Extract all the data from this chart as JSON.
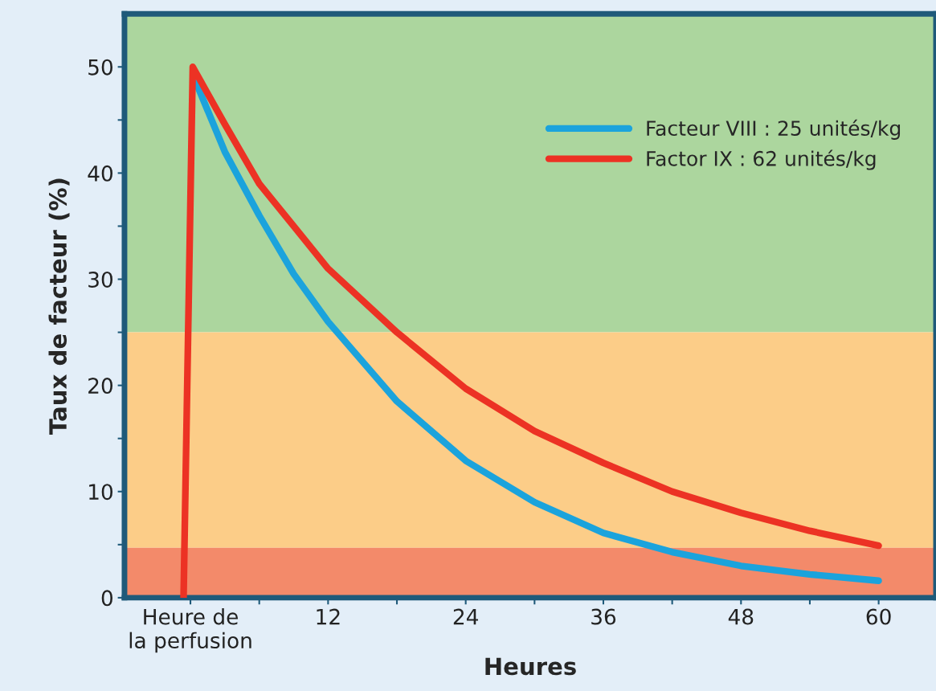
{
  "chart_data": {
    "type": "line",
    "xlabel": "Heures",
    "ylabel": "Taux de facteur (%)",
    "xlim": [
      -5.75,
      65
    ],
    "ylim": [
      0,
      55
    ],
    "xticks": [
      {
        "value": 0,
        "label": "Heure de\nla perfusion"
      },
      {
        "value": 6,
        "label": null
      },
      12,
      {
        "value": 18,
        "label": null
      },
      24,
      {
        "value": 30,
        "label": null
      },
      36,
      {
        "value": 42,
        "label": null
      },
      48,
      {
        "value": 54,
        "label": null
      },
      60
    ],
    "yticks": [
      0,
      {
        "value": 5,
        "label": null
      },
      10,
      {
        "value": 15,
        "label": null
      },
      20,
      {
        "value": 25,
        "label": null
      },
      30,
      {
        "value": 35,
        "label": null
      },
      40,
      {
        "value": 45,
        "label": null
      },
      50
    ],
    "series": [
      {
        "name": "Facteur VIII : 25 unités/kg",
        "color": "#1ba3dc",
        "x": [
          0.5,
          3,
          6,
          9,
          12,
          18,
          24,
          30,
          36,
          42,
          48,
          54,
          60
        ],
        "values": [
          48.5,
          42,
          36,
          30.5,
          26,
          18.5,
          12.9,
          9,
          6.1,
          4.3,
          3.0,
          2.2,
          1.6
        ]
      },
      {
        "name": "Factor IX : 62 unités/kg",
        "color": "#ec3224",
        "x": [
          -0.6,
          0.2,
          3,
          6,
          9,
          12,
          18,
          24,
          30,
          36,
          42,
          48,
          54,
          60
        ],
        "values": [
          0,
          50,
          44.6,
          39,
          35,
          31,
          25,
          19.7,
          15.7,
          12.7,
          10,
          8.0,
          6.3,
          4.9
        ]
      }
    ],
    "bands": [
      {
        "axis": "y",
        "from": 25,
        "to": 55,
        "color": "#acd69e"
      },
      {
        "axis": "y",
        "from": 4.7,
        "to": 25,
        "color": "#fccd88"
      },
      {
        "axis": "y",
        "from": 0,
        "to": 4.7,
        "color": "#f38a6a"
      }
    ],
    "legend": "top right",
    "grid": false,
    "line_style": "solid",
    "marker": "none"
  }
}
